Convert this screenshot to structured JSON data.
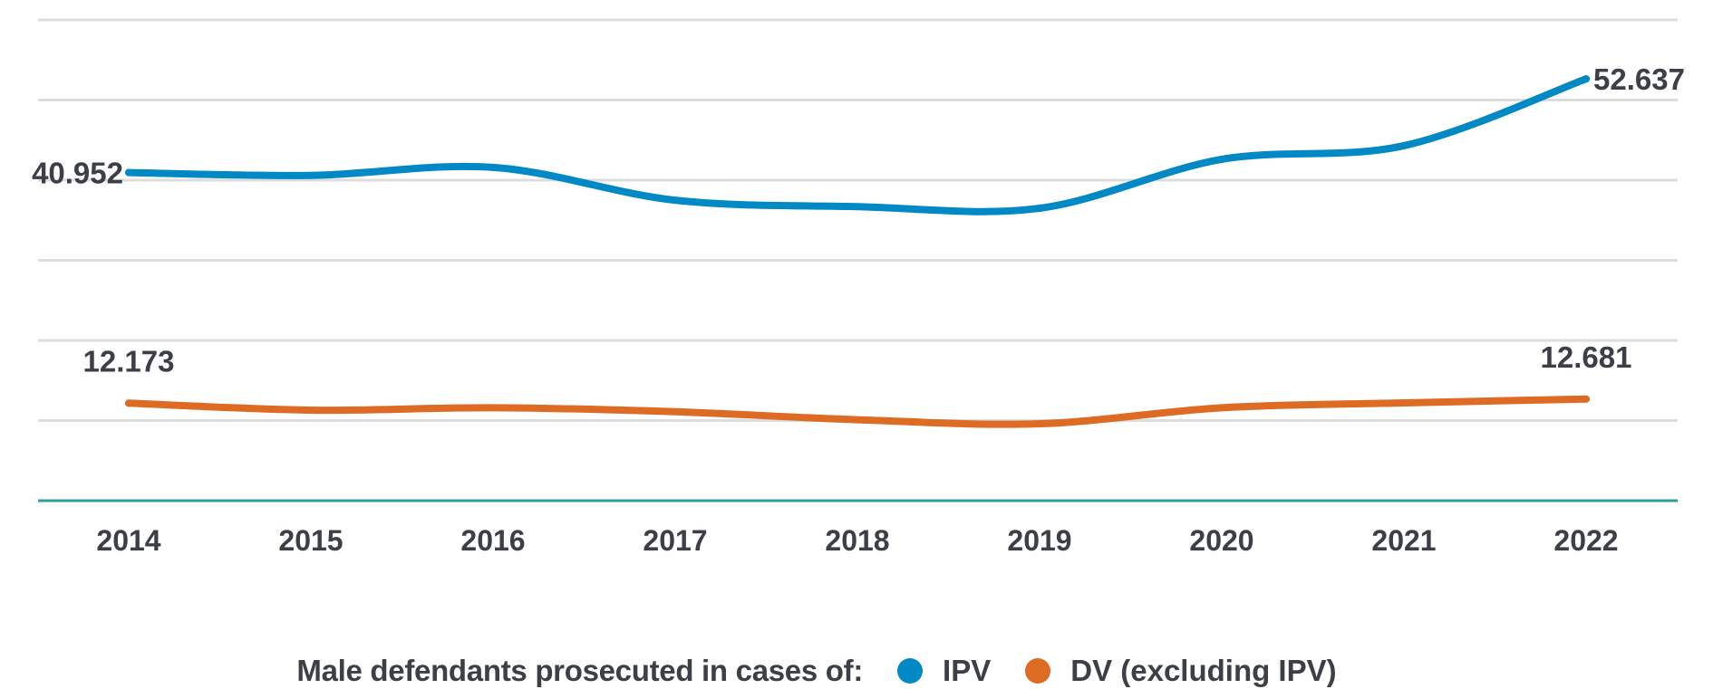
{
  "chart_data": {
    "type": "line",
    "title": "",
    "xlabel": "",
    "ylabel": "",
    "x": [
      "2014",
      "2015",
      "2016",
      "2017",
      "2018",
      "2019",
      "2020",
      "2021",
      "2022"
    ],
    "ylim": [
      0,
      60
    ],
    "yticks": [
      0,
      10,
      20,
      30,
      40,
      50,
      60
    ],
    "grid": true,
    "y_tick_labels_shown": false,
    "smooth": true,
    "legend": {
      "title": "Male defendants prosecuted in cases of:",
      "placement": "bottom-center"
    },
    "series": [
      {
        "name": "IPV",
        "color": "#0089c4",
        "values": [
          40.952,
          40.6,
          41.6,
          37.5,
          36.7,
          36.5,
          42.6,
          44.3,
          52.637
        ],
        "labels": [
          {
            "index": 0,
            "text": "40.952",
            "position": "left"
          },
          {
            "index": 8,
            "text": "52.637",
            "position": "right"
          }
        ]
      },
      {
        "name": "DV (excluding IPV)",
        "color": "#dd6b24",
        "values": [
          12.173,
          11.3,
          11.6,
          11.1,
          10.1,
          9.6,
          11.6,
          12.2,
          12.681
        ],
        "labels": [
          {
            "index": 0,
            "text": "12.173",
            "position": "above"
          },
          {
            "index": 8,
            "text": "12.681",
            "position": "above"
          }
        ]
      }
    ],
    "colors": {
      "grid": "#dcdcdc",
      "x_axis": "#2e9e96",
      "text": "#3c3f46"
    }
  }
}
